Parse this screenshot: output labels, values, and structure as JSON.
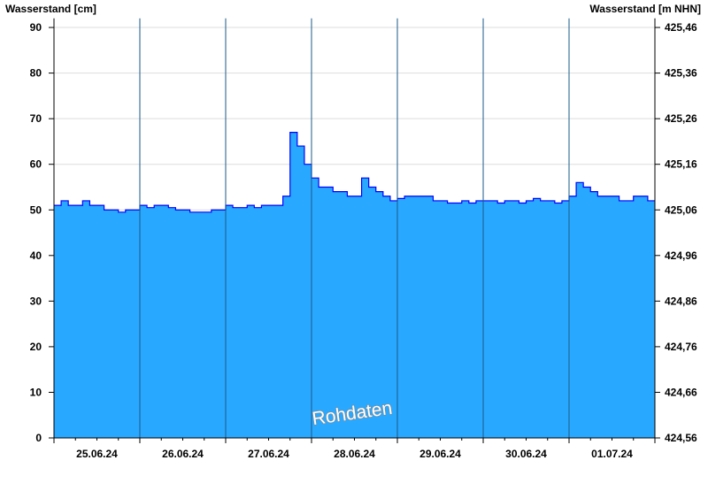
{
  "chart_data": {
    "type": "area",
    "ylabel_left": "Wasserstand [cm]",
    "ylabel_right": "Wasserstand [m NHN]",
    "ylim": [
      0,
      92
    ],
    "left_ticks": [
      "0",
      "10",
      "20",
      "30",
      "40",
      "50",
      "60",
      "70",
      "80",
      "90"
    ],
    "right_ticks": [
      "424,56",
      "424,66",
      "424,76",
      "424,86",
      "424,96",
      "425,06",
      "425,16",
      "425,26",
      "425,36",
      "425,46"
    ],
    "x_tick_labels": [
      "25.06.24",
      "26.06.24",
      "27.06.24",
      "28.06.24",
      "29.06.24",
      "30.06.24",
      "01.07.24"
    ],
    "x_start": "25.06.24 00:00",
    "x_end": "02.07.24 00:00",
    "step_hours": 2,
    "grid": true,
    "annotation": "Rohdaten",
    "colors": {
      "fill": "#29a8ff",
      "line": "#0000ff",
      "day_line": "#1a5a8a",
      "grid": "#dddddd"
    },
    "values": [
      51,
      52,
      51,
      51,
      52,
      51,
      51,
      50,
      50,
      49.5,
      50,
      50,
      51,
      50.5,
      51,
      51,
      50.5,
      50,
      50,
      49.5,
      49.5,
      49.5,
      50,
      50,
      51,
      50.5,
      50.5,
      51,
      50.5,
      51,
      51,
      51,
      53,
      67,
      64,
      60,
      57,
      55,
      55,
      54,
      54,
      53,
      53,
      57,
      55,
      54,
      53,
      52,
      52.5,
      53,
      53,
      53,
      53,
      52,
      52,
      51.5,
      51.5,
      52,
      51.5,
      52,
      52,
      52,
      51.5,
      52,
      52,
      51.5,
      52,
      52.5,
      52,
      52,
      51.5,
      52,
      53,
      56,
      55,
      54,
      53,
      53,
      53,
      52,
      52,
      53,
      53,
      52,
      52
    ]
  }
}
